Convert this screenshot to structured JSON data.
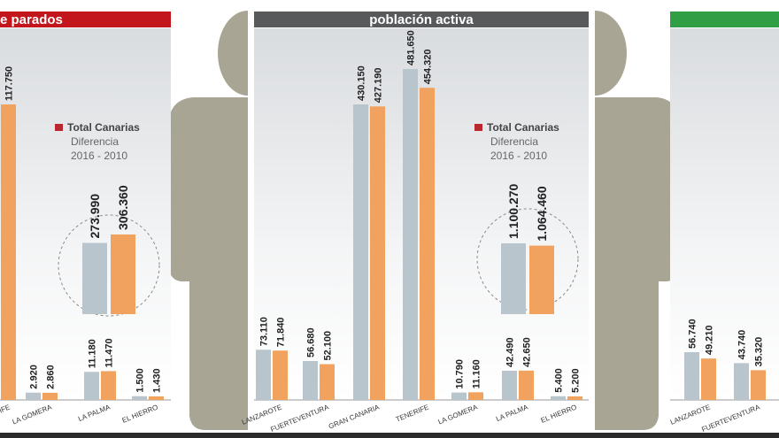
{
  "chart_data": [
    {
      "type": "bar",
      "title": "e parados",
      "header_color": "#c3161c",
      "categories": [
        "TENERIFE",
        "LA GOMERA",
        "LA PALMA",
        "EL HIERRO"
      ],
      "series": [
        {
          "color": "#b9c5cd",
          "values": [
            null,
            2920,
            11180,
            1500
          ],
          "value_labels": [
            null,
            "2.920",
            "11.180",
            "1.500"
          ]
        },
        {
          "color": "#f0a25e",
          "values": [
            117750,
            2860,
            11470,
            1430
          ],
          "value_labels": [
            "117.750",
            "2.860",
            "11.470",
            "1.430"
          ]
        }
      ],
      "total": {
        "label": "Total Canarias",
        "note": "Diferencia",
        "period": "2016 - 2010",
        "legend_color": "#b8292f",
        "values": [
          273990,
          306360
        ],
        "value_labels": [
          "273.990",
          "306.360"
        ]
      }
    },
    {
      "type": "bar",
      "title": "población activa",
      "header_color": "#58595b",
      "categories": [
        "LANZAROTE",
        "FUERTEVENTURA",
        "GRAN CANARIA",
        "TENERIFE",
        "LA GOMERA",
        "LA PALMA",
        "EL HIERRO"
      ],
      "series": [
        {
          "color": "#b9c5cd",
          "values": [
            73110,
            56680,
            430150,
            481650,
            10790,
            42490,
            5400
          ],
          "value_labels": [
            "73.110",
            "56.680",
            "430.150",
            "481.650",
            "10.790",
            "42.490",
            "5.400"
          ]
        },
        {
          "color": "#f0a25e",
          "values": [
            71840,
            52100,
            427190,
            454320,
            11160,
            42650,
            5200
          ],
          "value_labels": [
            "71.840",
            "52.100",
            "427.190",
            "454.320",
            "11.160",
            "42.650",
            "5.200"
          ]
        }
      ],
      "total": {
        "label": "Total Canarias",
        "note": "Diferencia",
        "period": "2016 - 2010",
        "legend_color": "#b8292f",
        "values": [
          1100270,
          1064460
        ],
        "value_labels": [
          "1.100.270",
          "1.064.460"
        ]
      }
    },
    {
      "type": "bar",
      "header_color": "#2f9e44",
      "categories": [
        "LANZAROTE",
        "FUERTEVENTURA"
      ],
      "series": [
        {
          "color": "#b9c5cd",
          "values": [
            56740,
            43740
          ],
          "value_labels": [
            "56.740",
            "43.740"
          ]
        },
        {
          "color": "#f0a25e",
          "values": [
            49210,
            35320
          ],
          "value_labels": [
            "49.210",
            "35.320"
          ]
        }
      ]
    }
  ]
}
